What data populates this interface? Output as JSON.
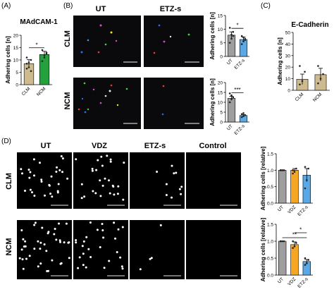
{
  "panel_letters": {
    "a": "(A)",
    "b": "(B)",
    "c": "(C)",
    "d": "(D)"
  },
  "micrographs": {
    "b": {
      "cols": [
        "UT",
        "ETZ-s"
      ],
      "rows": [
        "CLM",
        "NCM"
      ]
    },
    "d": {
      "cols": [
        "UT",
        "VDZ",
        "ETZ-s",
        "Control"
      ],
      "rows": [
        "CLM",
        "NCM"
      ]
    }
  },
  "colors": {
    "ut_bar": "#9e9e9e",
    "vdz_bar": "#f5a623",
    "etz_bar": "#5aa9e6",
    "clm_bar_a": "#cdbb8f",
    "ncm_bar_a": "#24a03c",
    "ecad_bar": "#cdbb8f"
  },
  "chart_data": [
    {
      "id": "A",
      "type": "bar",
      "title": "MAdCAM-1",
      "ylabel": "Adhering cells [n]",
      "categories": [
        "CLM",
        "NCM"
      ],
      "values": [
        8.5,
        12.2
      ],
      "errors": [
        1.6,
        1.3
      ],
      "ylim": [
        0,
        20
      ],
      "yticks": [
        0,
        5,
        10,
        15,
        20
      ],
      "points": [
        [
          6.5,
          9,
          10,
          11,
          7,
          5.5,
          8.5
        ],
        [
          9.5,
          12,
          13,
          14,
          11,
          12.5
        ]
      ],
      "significance": [
        {
          "from": 0,
          "to": 1,
          "label": "*"
        }
      ]
    },
    {
      "id": "B-CLM",
      "type": "bar",
      "ylabel": "Adhering cells [n]",
      "categories": [
        "UT",
        "ETZ-s"
      ],
      "values": [
        7.8,
        6.2
      ],
      "errors": [
        1.2,
        0.9
      ],
      "ylim": [
        0,
        15
      ],
      "yticks": [
        0,
        5,
        10,
        15
      ],
      "points": [
        [
          5,
          6.5,
          9,
          10.5,
          8,
          7.5
        ],
        [
          4.5,
          5.5,
          6.5,
          7.5,
          7,
          6
        ]
      ],
      "significance": [
        {
          "from": 0,
          "to": 1,
          "label": "*"
        }
      ]
    },
    {
      "id": "B-NCM",
      "type": "bar",
      "ylabel": "Adhering cells [n]",
      "categories": [
        "UT",
        "ETZ-s"
      ],
      "values": [
        12.0,
        3.3
      ],
      "errors": [
        1.0,
        0.5
      ],
      "ylim": [
        0,
        20
      ],
      "yticks": [
        0,
        5,
        10,
        15,
        20
      ],
      "points": [
        [
          10,
          11.5,
          12.5,
          14.5,
          13.5
        ],
        [
          2.5,
          3,
          3.5,
          4,
          4.5
        ]
      ],
      "significance": [
        {
          "from": 0,
          "to": 1,
          "label": "***"
        }
      ]
    },
    {
      "id": "C",
      "type": "bar",
      "title": "E-Cadherin",
      "ylabel": "Adhering cells [n]",
      "categories": [
        "CLM",
        "NCM"
      ],
      "values": [
        9.5,
        13.5
      ],
      "errors": [
        4.5,
        5.5
      ],
      "ylim": [
        0,
        50
      ],
      "yticks": [
        0,
        10,
        20,
        30,
        40,
        50
      ],
      "points": [
        [
          5,
          8,
          16,
          21
        ],
        [
          6,
          10,
          14,
          21
        ]
      ],
      "significance": []
    },
    {
      "id": "D-CLM",
      "type": "bar",
      "ylabel": "Adhering cells [relative]",
      "categories": [
        "UT",
        "VDZ",
        "ETZ-s"
      ],
      "values": [
        1.0,
        1.0,
        0.85
      ],
      "errors": [
        0.0,
        0.05,
        0.2
      ],
      "ylim": [
        0,
        1.5
      ],
      "yticks": [
        0.0,
        0.5,
        1.0,
        1.5
      ],
      "points": [
        [
          1,
          1,
          1,
          1
        ],
        [
          0.9,
          0.95,
          1.05,
          1.0
        ],
        [
          0.45,
          0.7,
          1.05,
          1.1
        ]
      ],
      "significance": []
    },
    {
      "id": "D-NCM",
      "type": "bar",
      "ylabel": "Adhering cells [relative]",
      "categories": [
        "UT",
        "VDZ",
        "ETZ-s"
      ],
      "values": [
        1.0,
        0.9,
        0.4
      ],
      "errors": [
        0.0,
        0.08,
        0.06
      ],
      "ylim": [
        0,
        1.5
      ],
      "yticks": [
        0.0,
        0.5,
        1.0,
        1.5
      ],
      "points": [
        [
          1,
          1,
          1,
          1
        ],
        [
          0.8,
          0.85,
          0.95,
          1.0
        ],
        [
          0.3,
          0.35,
          0.45,
          0.5
        ]
      ],
      "significance": [
        {
          "from": 0,
          "to": 2,
          "label": "**"
        },
        {
          "from": 1,
          "to": 2,
          "label": "*"
        }
      ]
    }
  ]
}
